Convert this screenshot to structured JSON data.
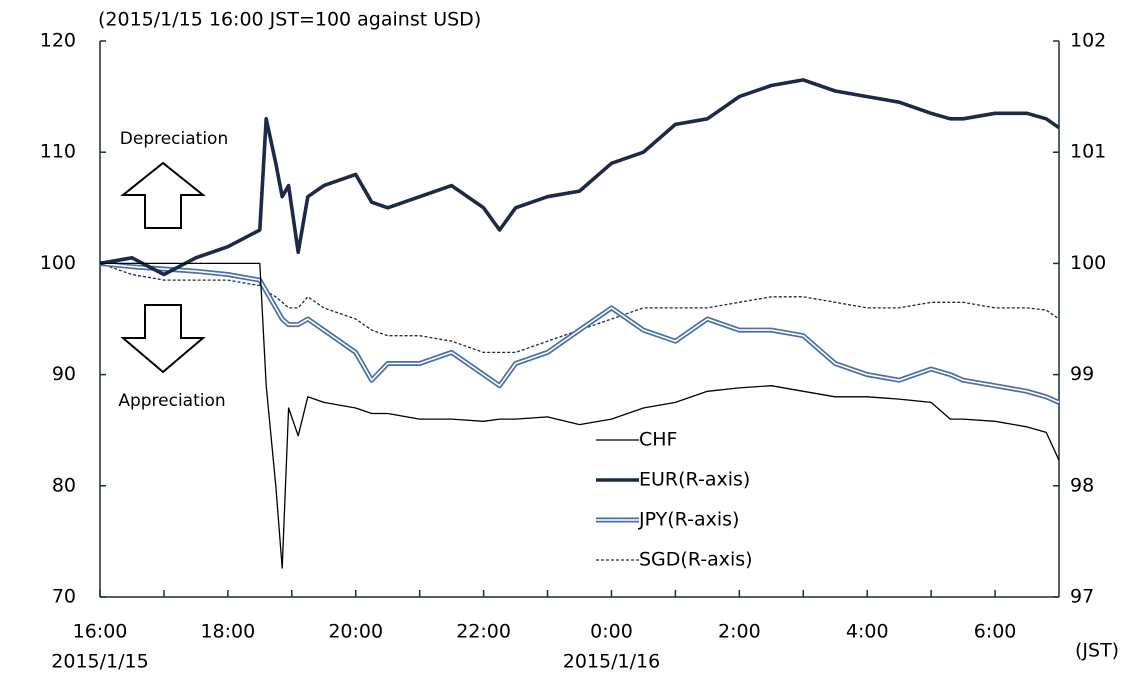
{
  "chart_data": {
    "type": "line",
    "title": "(2015/1/15 16:00 JST=100 against USD)",
    "x_unit_label": "(JST)",
    "date_labels": [
      {
        "x": 0,
        "label": "2015/1/15"
      },
      {
        "x": 8,
        "label": "2015/1/16"
      }
    ],
    "annotations": [
      "Depreciation",
      "Appreciation"
    ],
    "x": [
      0,
      0.5,
      1,
      1.5,
      2,
      2.5,
      2.6,
      2.75,
      2.85,
      2.95,
      3.1,
      3.25,
      3.5,
      4,
      4.25,
      4.5,
      5,
      5.5,
      6,
      6.25,
      6.5,
      7,
      7.5,
      8,
      8.5,
      9,
      9.5,
      10,
      10.5,
      11,
      11.5,
      12,
      12.5,
      13,
      13.3,
      13.5,
      14,
      14.5,
      14.8,
      15
    ],
    "xlim": [
      0,
      15
    ],
    "xticks": [
      {
        "value": 0,
        "label": "16:00"
      },
      {
        "value": 2,
        "label": "18:00"
      },
      {
        "value": 4,
        "label": "20:00"
      },
      {
        "value": 6,
        "label": "22:00"
      },
      {
        "value": 8,
        "label": "0:00"
      },
      {
        "value": 10,
        "label": "2:00"
      },
      {
        "value": 12,
        "label": "4:00"
      },
      {
        "value": 14,
        "label": "6:00"
      }
    ],
    "xminor_ticks": [
      1,
      3,
      5,
      7,
      9,
      11,
      13
    ],
    "ylim": [
      70,
      120
    ],
    "yticks": [
      70,
      80,
      90,
      100,
      110,
      120
    ],
    "y2lim": [
      97,
      102
    ],
    "y2ticks": [
      97,
      98,
      99,
      100,
      101,
      102
    ],
    "legend": "lower right",
    "series": [
      {
        "name": "CHF",
        "color": "#000000",
        "style": "thin",
        "values": [
          100,
          100,
          100,
          100,
          100,
          100,
          89,
          80,
          72.6,
          87,
          84.5,
          88,
          87.5,
          87,
          86.5,
          86.5,
          86,
          86,
          85.8,
          86,
          86,
          86.2,
          85.5,
          86,
          87,
          87.5,
          88.5,
          88.8,
          89,
          88.5,
          88,
          88,
          87.8,
          87.5,
          86,
          86,
          85.8,
          85.3,
          84.8,
          82.3
        ]
      },
      {
        "name": "EUR(R-axis)",
        "color": "#1b2a47",
        "style": "thick",
        "axis": "y2",
        "values": [
          100,
          100.05,
          99.9,
          100.05,
          100.15,
          100.3,
          101.3,
          100.9,
          100.6,
          100.7,
          100.1,
          100.6,
          100.7,
          100.8,
          100.55,
          100.5,
          100.6,
          100.7,
          100.5,
          100.3,
          100.5,
          100.6,
          100.65,
          100.9,
          101.0,
          101.25,
          101.3,
          101.5,
          101.6,
          101.65,
          101.55,
          101.5,
          101.45,
          101.35,
          101.3,
          101.3,
          101.35,
          101.35,
          101.3,
          101.22
        ]
      },
      {
        "name": "JPY(R-axis)",
        "color": "#4a6fa5",
        "style": "double",
        "axis": "y2",
        "values": [
          100,
          99.97,
          99.95,
          99.93,
          99.9,
          99.85,
          99.75,
          99.6,
          99.5,
          99.45,
          99.45,
          99.5,
          99.4,
          99.2,
          98.95,
          99.1,
          99.1,
          99.2,
          99.0,
          98.9,
          99.1,
          99.2,
          99.4,
          99.6,
          99.4,
          99.3,
          99.5,
          99.4,
          99.4,
          99.35,
          99.1,
          99.0,
          98.95,
          99.05,
          99.0,
          98.95,
          98.9,
          98.85,
          98.8,
          98.75
        ]
      },
      {
        "name": "SGD(R-axis)",
        "color": "#1b2a47",
        "style": "dashed",
        "axis": "y2",
        "values": [
          100,
          99.9,
          99.85,
          99.85,
          99.85,
          99.8,
          99.75,
          99.7,
          99.65,
          99.6,
          99.6,
          99.7,
          99.6,
          99.5,
          99.4,
          99.35,
          99.35,
          99.3,
          99.2,
          99.2,
          99.2,
          99.3,
          99.4,
          99.5,
          99.6,
          99.6,
          99.6,
          99.65,
          99.7,
          99.7,
          99.65,
          99.6,
          99.6,
          99.65,
          99.65,
          99.65,
          99.6,
          99.6,
          99.58,
          99.5
        ]
      }
    ]
  }
}
